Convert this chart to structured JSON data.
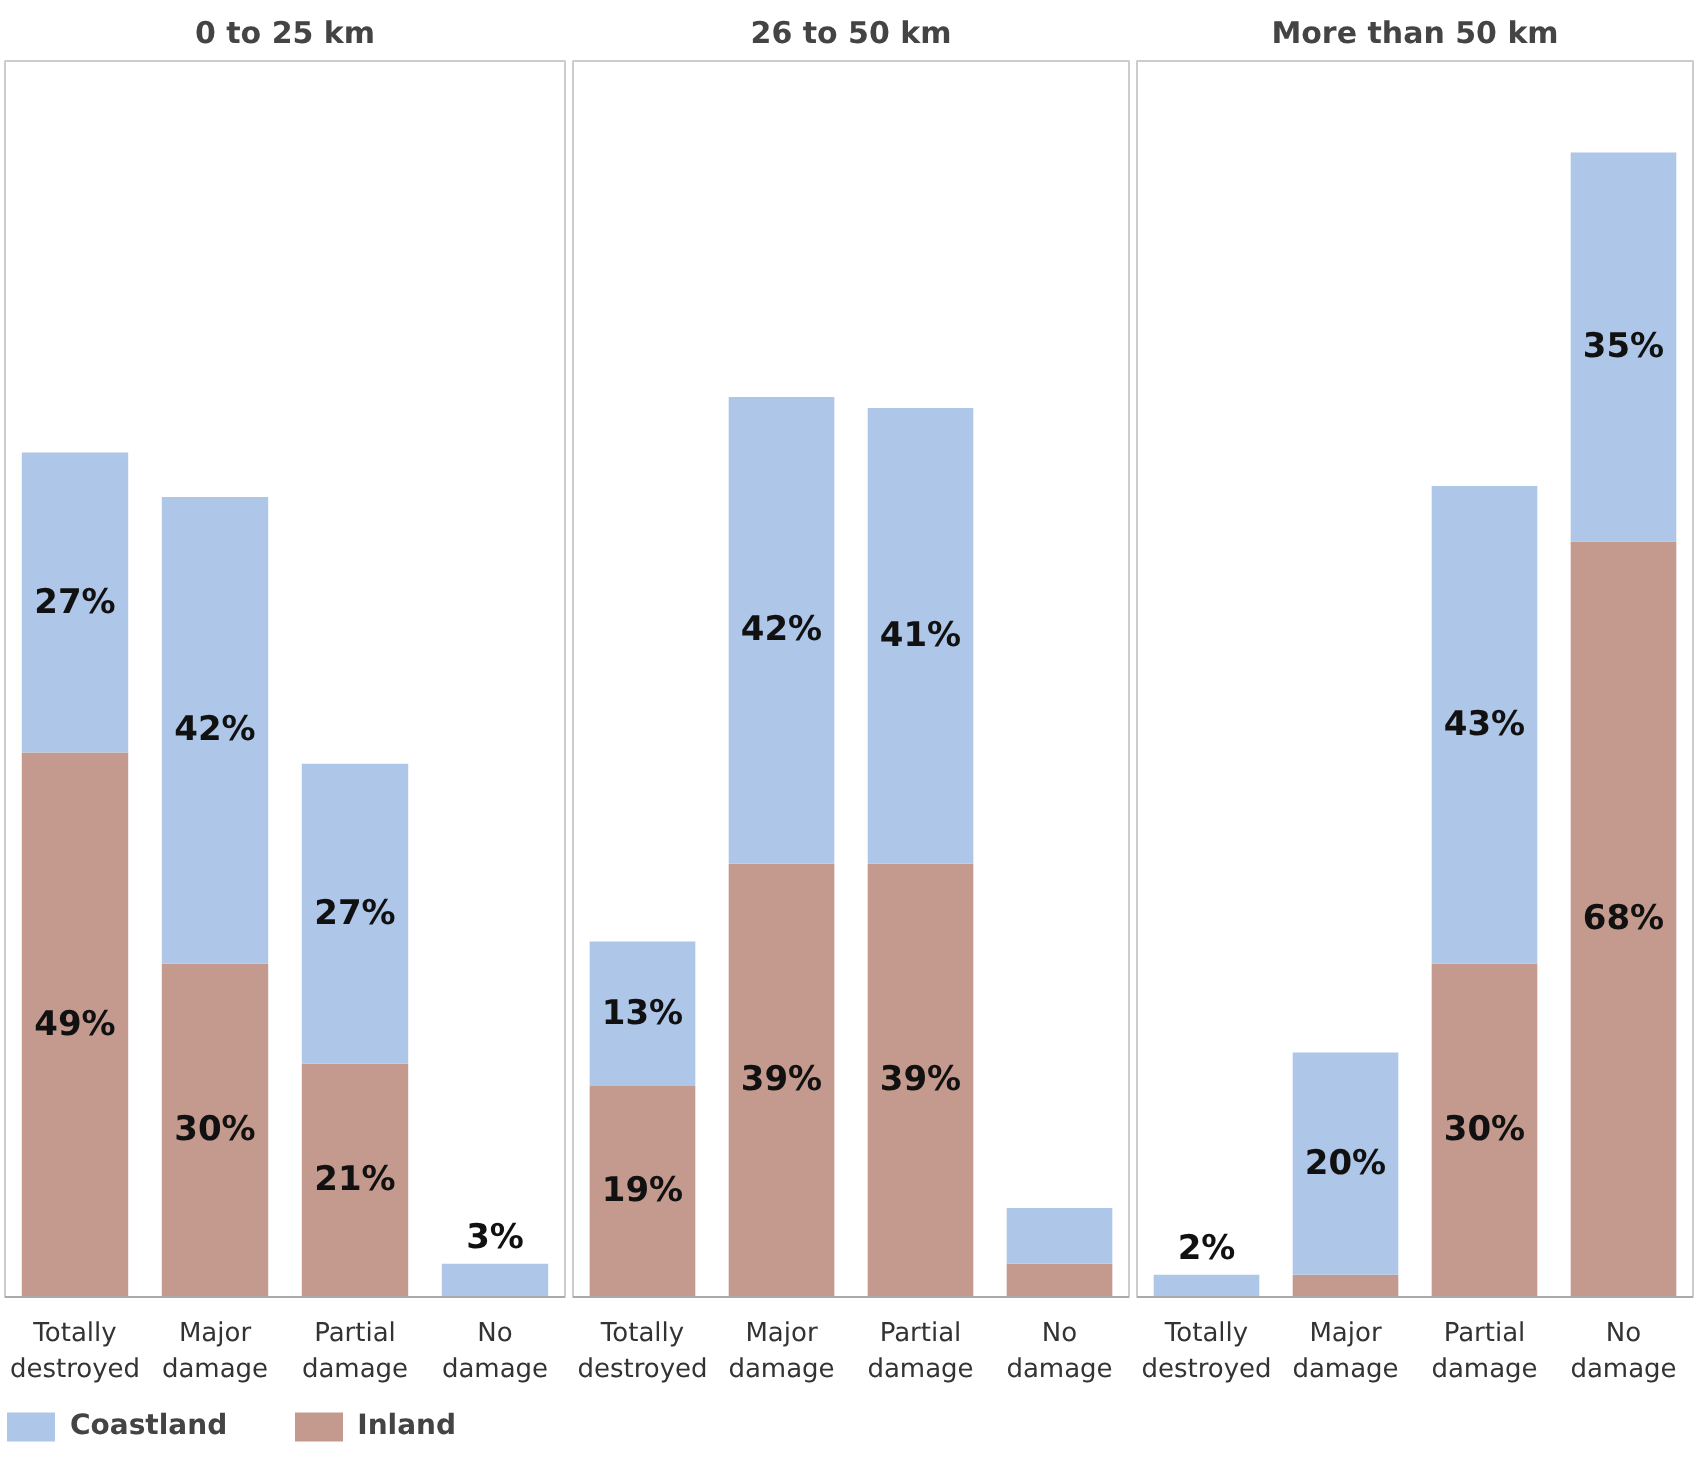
{
  "chart_data": [
    {
      "type": "bar",
      "title": "0 to 25 km",
      "stacked": true,
      "legend": "bottom left",
      "grid": false,
      "categories": [
        "Totally destroyed",
        "Major damage",
        "Partial damage",
        "No damage"
      ],
      "series": [
        {
          "name": "Inland",
          "color": "#c49a8f",
          "values": [
            49,
            30,
            21,
            0
          ],
          "value_labels": [
            "49%",
            "30%",
            "21%",
            null
          ]
        },
        {
          "name": "Coastland",
          "color": "#aec6e8",
          "values": [
            27,
            42,
            27,
            3
          ],
          "value_labels": [
            "27%",
            "42%",
            "27%",
            "3%"
          ]
        }
      ]
    },
    {
      "type": "bar",
      "title": "26 to 50 km",
      "stacked": true,
      "grid": false,
      "categories": [
        "Totally destroyed",
        "Major damage",
        "Partial damage",
        "No damage"
      ],
      "series": [
        {
          "color": "#c49a8f",
          "values": [
            19,
            39,
            39,
            3
          ],
          "value_labels": [
            "19%",
            "39%",
            "39%",
            null
          ]
        },
        {
          "color": "#aec6e8",
          "values": [
            13,
            42,
            41,
            5
          ],
          "value_labels": [
            "13%",
            "42%",
            "41%",
            null
          ]
        }
      ]
    },
    {
      "type": "bar",
      "title": "More than 50 km",
      "stacked": true,
      "grid": false,
      "categories": [
        "Totally destroyed",
        "Major damage",
        "Partial damage",
        "No damage"
      ],
      "series": [
        {
          "color": "#c49a8f",
          "values": [
            0,
            2,
            30,
            68
          ],
          "value_labels": [
            null,
            null,
            "30%",
            "68%"
          ]
        },
        {
          "color": "#aec6e8",
          "values": [
            2,
            20,
            43,
            35
          ],
          "value_labels": [
            "2%",
            "20%",
            "43%",
            "35%"
          ]
        }
      ]
    }
  ]
}
